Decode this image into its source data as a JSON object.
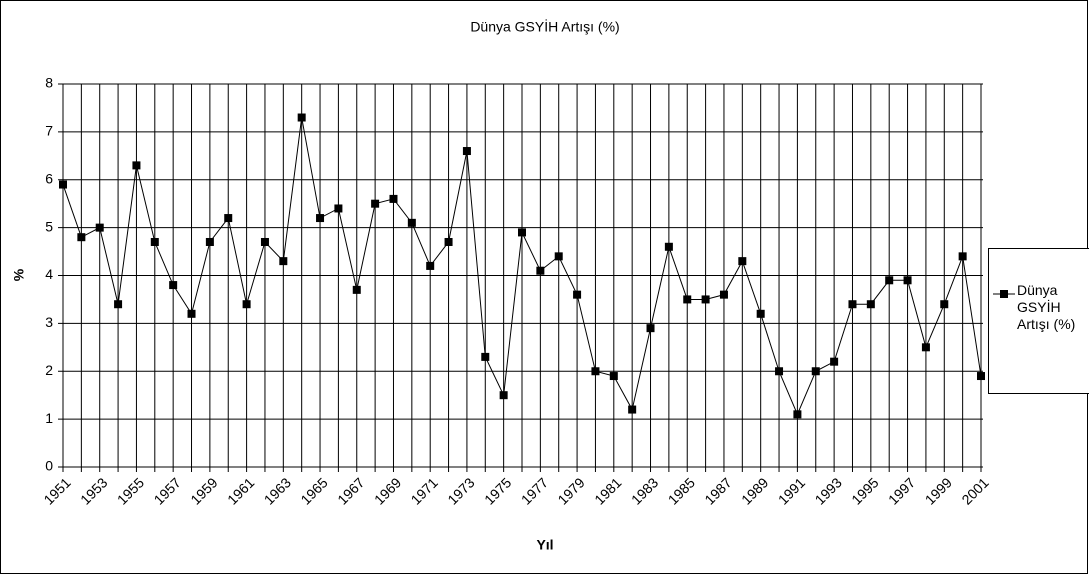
{
  "chart_data": {
    "type": "line",
    "title": "Dünya GSYİH Artışı (%)",
    "x_label": "Yıl",
    "y_label": "%",
    "categories": [
      "1951",
      null,
      "1953",
      null,
      "1955",
      null,
      "1957",
      null,
      "1959",
      null,
      "1961",
      null,
      "1963",
      null,
      "1965",
      null,
      "1967",
      null,
      "1969",
      null,
      "1971",
      null,
      "1973",
      null,
      "1975",
      null,
      "1977",
      null,
      "1979",
      null,
      "1981",
      null,
      "1983",
      null,
      "1985",
      null,
      "1987",
      null,
      "1989",
      null,
      "1991",
      null,
      "1993",
      null,
      "1995",
      null,
      "1997",
      null,
      "1999",
      null,
      "2001"
    ],
    "series": [
      {
        "name": "Dünya GSYİH Artışı (%)",
        "color": "#000000",
        "values": [
          5.9,
          4.8,
          5.0,
          3.4,
          6.3,
          4.7,
          3.8,
          3.2,
          4.7,
          5.2,
          3.4,
          4.7,
          4.3,
          7.3,
          5.2,
          5.4,
          3.7,
          5.5,
          5.6,
          5.1,
          4.2,
          4.7,
          6.6,
          2.3,
          1.5,
          4.9,
          4.1,
          4.4,
          3.6,
          2.0,
          1.9,
          1.2,
          2.9,
          4.6,
          3.5,
          3.5,
          3.6,
          4.3,
          3.2,
          2.0,
          1.1,
          2.0,
          2.2,
          3.4,
          3.4,
          3.9,
          3.9,
          2.5,
          3.4,
          4.4,
          1.9
        ]
      }
    ],
    "ylim": [
      0,
      8
    ],
    "yticks": [
      0,
      1,
      2,
      3,
      4,
      5,
      6,
      7,
      8
    ],
    "grid": true,
    "legend": "right"
  }
}
